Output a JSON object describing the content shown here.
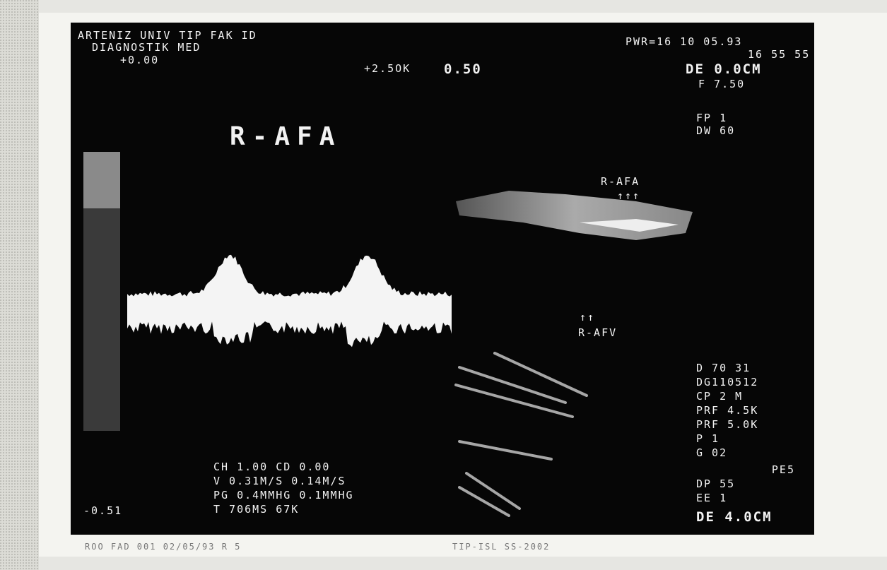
{
  "screen": {
    "header": {
      "line1": "ARTENIZ UNIV TIP FAK ID",
      "line2": "DIAGNOSTIK MED",
      "offset": "+0.00",
      "scale": "+2.5OK",
      "scale_value": "0.50"
    },
    "top_right": {
      "power": "PWR=16 10 05.93",
      "time": "16 55 55",
      "depth": "DE 0.0CM",
      "freq": "F 7.50",
      "fp": "FP 1",
      "dw": "DW 60"
    },
    "title": "R-AFA",
    "annotations": {
      "artery": "R-AFA",
      "artery_arrows": "↑↑↑",
      "vein_arrows": "↑↑",
      "vein": "R-AFV"
    },
    "settings": [
      "D 70 31",
      "DG110512",
      "CP 2 M",
      "PRF 4.5K",
      "PRF 5.0K",
      "P 1",
      "G 02",
      "PE5",
      "DP 55",
      "EE 1",
      "DE 4.0CM"
    ],
    "measurements": [
      "CH 1.00 CD 0.00",
      "V 0.31M/S 0.14M/S",
      "PG 0.4MMHG 0.1MMHG",
      "T 706MS 67K"
    ],
    "baseline": "-0.51",
    "caption": {
      "left": "ROO FAD 001 02/05/93 R 5",
      "right": "TIP-ISL SS-2002"
    }
  }
}
